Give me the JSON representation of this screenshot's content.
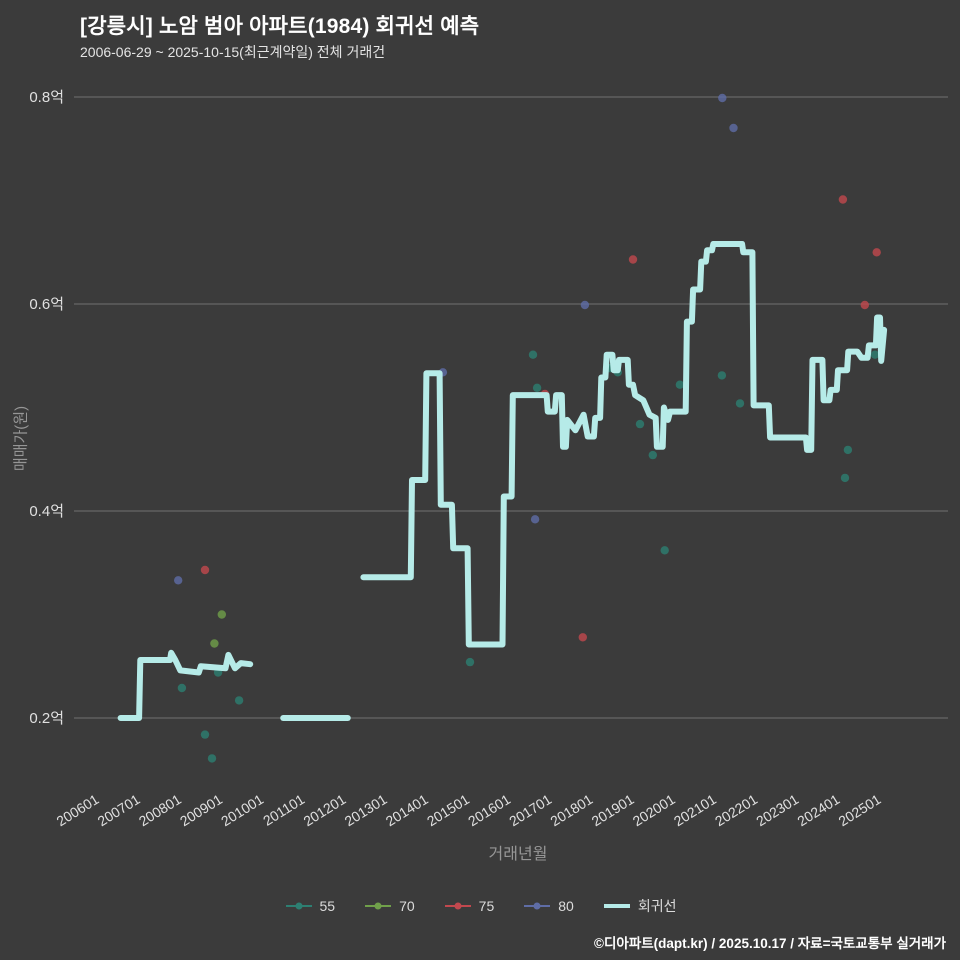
{
  "title": "[강릉시] 노암 범아 아파트(1984) 회귀선 예측",
  "subtitle": "2006-06-29 ~ 2025-10-15(최근계약일) 전체 거래건",
  "footer": "©디아파트(dapt.kr) / 2025.10.17 / 자료=국토교통부 실거래가",
  "chart_data": {
    "type": "scatter",
    "title": "[강릉시] 노암 범아 아파트(1984) 회귀선 예측",
    "xlabel": "거래년월",
    "ylabel": "매매가(원)",
    "x_ticks": [
      "200601",
      "200701",
      "200801",
      "200901",
      "201001",
      "201101",
      "201201",
      "201301",
      "201401",
      "201501",
      "201601",
      "201701",
      "201801",
      "201901",
      "202001",
      "202101",
      "202201",
      "202301",
      "202401",
      "202501"
    ],
    "y_ticks": [
      {
        "label": "0.2억",
        "value": 0.2
      },
      {
        "label": "0.4억",
        "value": 0.4
      },
      {
        "label": "0.6억",
        "value": 0.6
      },
      {
        "label": "0.8억",
        "value": 0.8
      }
    ],
    "xlim": [
      2005.8,
      2026.3
    ],
    "ylim": [
      0.13,
      0.84
    ],
    "grid": "horizontal-only",
    "legend_position": "bottom-center",
    "colors": {
      "background": "#3b3b3b",
      "grid": "#707070",
      "tick_label": "#e0e0e0",
      "axis_title": "#969696"
    },
    "series": [
      {
        "name": "55",
        "type": "scatter",
        "color": "#2d7f72",
        "points": [
          [
            2007.99,
            0.229
          ],
          [
            2008.55,
            0.184
          ],
          [
            2008.72,
            0.161
          ],
          [
            2008.87,
            0.244
          ],
          [
            2009.38,
            0.217
          ],
          [
            2014.99,
            0.254
          ],
          [
            2016.52,
            0.551
          ],
          [
            2016.62,
            0.519
          ],
          [
            2018.39,
            0.538
          ],
          [
            2018.58,
            0.534
          ],
          [
            2019.12,
            0.484
          ],
          [
            2019.43,
            0.454
          ],
          [
            2019.72,
            0.362
          ],
          [
            2020.09,
            0.522
          ],
          [
            2021.11,
            0.531
          ],
          [
            2021.55,
            0.504
          ],
          [
            2024.1,
            0.432
          ],
          [
            2024.17,
            0.459
          ],
          [
            2024.83,
            0.551
          ]
        ]
      },
      {
        "name": "70",
        "type": "scatter",
        "color": "#70a04a",
        "points": [
          [
            2008.96,
            0.3
          ],
          [
            2008.78,
            0.272
          ]
        ]
      },
      {
        "name": "75",
        "type": "scatter",
        "color": "#c2484e",
        "points": [
          [
            2008.55,
            0.343
          ],
          [
            2016.81,
            0.513
          ],
          [
            2017.73,
            0.278
          ],
          [
            2018.95,
            0.643
          ],
          [
            2024.05,
            0.701
          ],
          [
            2024.58,
            0.599
          ],
          [
            2024.87,
            0.65
          ]
        ]
      },
      {
        "name": "80",
        "type": "scatter",
        "color": "#5f6da6",
        "points": [
          [
            2007.9,
            0.333
          ],
          [
            2014.33,
            0.534
          ],
          [
            2016.57,
            0.392
          ],
          [
            2017.78,
            0.599
          ],
          [
            2021.12,
            0.799
          ],
          [
            2021.39,
            0.77
          ]
        ]
      },
      {
        "name": "회귀선",
        "type": "line",
        "color": "#b6ebe8",
        "segments": [
          [
            [
              2006.5,
              0.2
            ],
            [
              2006.95,
              0.2
            ],
            [
              2006.98,
              0.256
            ],
            [
              2007.7,
              0.256
            ],
            [
              2007.73,
              0.263
            ],
            [
              2007.83,
              0.256
            ],
            [
              2007.95,
              0.246
            ],
            [
              2008.4,
              0.244
            ],
            [
              2008.45,
              0.25
            ],
            [
              2009.05,
              0.248
            ],
            [
              2009.12,
              0.261
            ],
            [
              2009.28,
              0.248
            ],
            [
              2009.42,
              0.253
            ],
            [
              2009.65,
              0.252
            ]
          ],
          [
            [
              2010.45,
              0.2
            ],
            [
              2012.02,
              0.2
            ]
          ],
          [
            [
              2012.4,
              0.336
            ],
            [
              2013.55,
              0.336
            ],
            [
              2013.58,
              0.43
            ],
            [
              2013.9,
              0.43
            ],
            [
              2013.93,
              0.533
            ],
            [
              2014.25,
              0.533
            ],
            [
              2014.28,
              0.406
            ],
            [
              2014.55,
              0.406
            ],
            [
              2014.58,
              0.364
            ],
            [
              2014.93,
              0.364
            ],
            [
              2014.96,
              0.271
            ],
            [
              2015.78,
              0.271
            ],
            [
              2015.81,
              0.414
            ],
            [
              2016.0,
              0.414
            ],
            [
              2016.03,
              0.512
            ],
            [
              2016.85,
              0.512
            ],
            [
              2016.88,
              0.496
            ],
            [
              2017.05,
              0.496
            ],
            [
              2017.08,
              0.512
            ],
            [
              2017.22,
              0.512
            ],
            [
              2017.25,
              0.462
            ],
            [
              2017.32,
              0.462
            ],
            [
              2017.35,
              0.488
            ],
            [
              2017.55,
              0.478
            ],
            [
              2017.75,
              0.493
            ],
            [
              2017.85,
              0.472
            ],
            [
              2018.0,
              0.472
            ],
            [
              2018.03,
              0.49
            ],
            [
              2018.15,
              0.49
            ],
            [
              2018.18,
              0.529
            ],
            [
              2018.28,
              0.529
            ],
            [
              2018.31,
              0.551
            ],
            [
              2018.45,
              0.551
            ],
            [
              2018.48,
              0.536
            ],
            [
              2018.58,
              0.536
            ],
            [
              2018.61,
              0.546
            ],
            [
              2018.82,
              0.546
            ],
            [
              2018.85,
              0.522
            ],
            [
              2018.95,
              0.522
            ],
            [
              2019.0,
              0.512
            ],
            [
              2019.2,
              0.507
            ],
            [
              2019.35,
              0.493
            ],
            [
              2019.5,
              0.49
            ],
            [
              2019.53,
              0.462
            ],
            [
              2019.67,
              0.462
            ],
            [
              2019.7,
              0.5
            ],
            [
              2019.8,
              0.488
            ],
            [
              2019.85,
              0.496
            ],
            [
              2020.23,
              0.496
            ],
            [
              2020.26,
              0.583
            ],
            [
              2020.38,
              0.583
            ],
            [
              2020.41,
              0.614
            ],
            [
              2020.58,
              0.614
            ],
            [
              2020.61,
              0.641
            ],
            [
              2020.72,
              0.641
            ],
            [
              2020.75,
              0.652
            ],
            [
              2020.87,
              0.652
            ],
            [
              2020.9,
              0.658
            ],
            [
              2021.6,
              0.658
            ],
            [
              2021.63,
              0.65
            ],
            [
              2021.85,
              0.65
            ],
            [
              2021.88,
              0.502
            ],
            [
              2022.25,
              0.502
            ],
            [
              2022.28,
              0.471
            ],
            [
              2023.15,
              0.471
            ],
            [
              2023.18,
              0.459
            ],
            [
              2023.28,
              0.459
            ],
            [
              2023.31,
              0.546
            ],
            [
              2023.55,
              0.546
            ],
            [
              2023.58,
              0.507
            ],
            [
              2023.72,
              0.507
            ],
            [
              2023.75,
              0.517
            ],
            [
              2023.9,
              0.517
            ],
            [
              2023.93,
              0.536
            ],
            [
              2024.15,
              0.536
            ],
            [
              2024.18,
              0.554
            ],
            [
              2024.4,
              0.554
            ],
            [
              2024.5,
              0.548
            ],
            [
              2024.65,
              0.548
            ],
            [
              2024.68,
              0.56
            ],
            [
              2024.85,
              0.56
            ],
            [
              2024.88,
              0.587
            ],
            [
              2024.95,
              0.587
            ],
            [
              2024.98,
              0.545
            ],
            [
              2025.05,
              0.575
            ]
          ]
        ]
      }
    ]
  }
}
